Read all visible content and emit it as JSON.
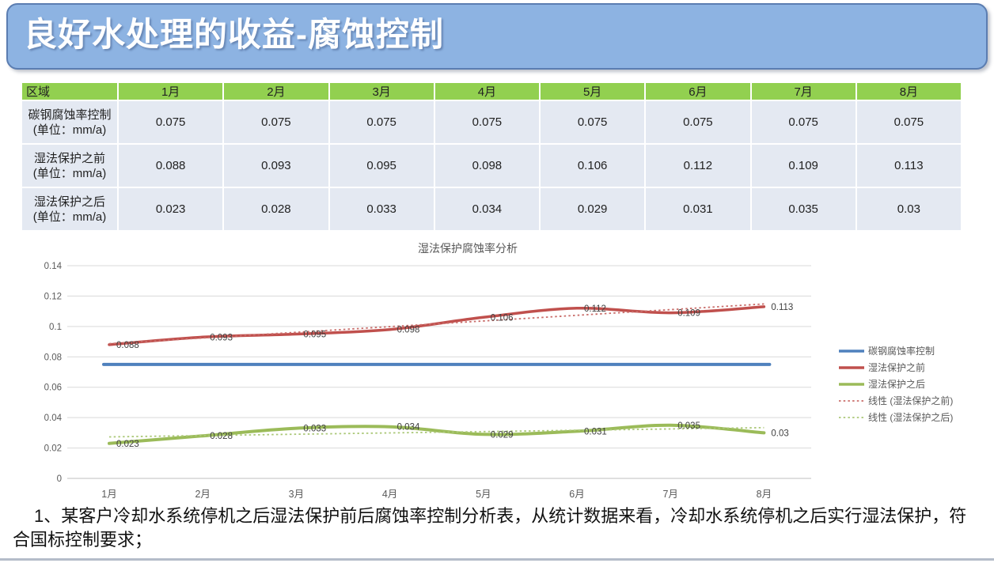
{
  "slide": {
    "title": "良好水处理的收益-腐蚀控制",
    "note": "1、某客户冷却水系统停机之后湿法保护前后腐蚀率控制分析表，从统计数据来看，冷却水系统停机之后实行湿法保护，符合国标控制要求；"
  },
  "colors": {
    "banner_fill": "#8db3e2",
    "banner_border": "#5b7db1",
    "table_header_green": "#92d050",
    "table_row_bg": "#e4e9f2",
    "bottom_rule": "#b4bcc9",
    "series_blue": "#4f81bd",
    "series_red": "#c0504d",
    "series_green": "#9bbb59"
  },
  "table": {
    "header": [
      "区域",
      "1月",
      "2月",
      "3月",
      "4月",
      "5月",
      "6月",
      "7月",
      "8月"
    ],
    "rows": [
      {
        "label": "碳钢腐蚀率控制",
        "unit": "(单位：mm/a)",
        "values": [
          "0.075",
          "0.075",
          "0.075",
          "0.075",
          "0.075",
          "0.075",
          "0.075",
          "0.075"
        ]
      },
      {
        "label": "湿法保护之前",
        "unit": "(单位：mm/a)",
        "values": [
          "0.088",
          "0.093",
          "0.095",
          "0.098",
          "0.106",
          "0.112",
          "0.109",
          "0.113"
        ]
      },
      {
        "label": "湿法保护之后",
        "unit": "(单位：mm/a)",
        "values": [
          "0.023",
          "0.028",
          "0.033",
          "0.034",
          "0.029",
          "0.031",
          "0.035",
          "0.03"
        ]
      }
    ]
  },
  "chart_data": {
    "type": "line",
    "title": "湿法保护腐蚀率分析",
    "categories": [
      "1月",
      "2月",
      "3月",
      "4月",
      "5月",
      "6月",
      "7月",
      "8月"
    ],
    "series": [
      {
        "name": "碳钢腐蚀率控制",
        "color": "#4f81bd",
        "style": "solid",
        "values": [
          0.075,
          0.075,
          0.075,
          0.075,
          0.075,
          0.075,
          0.075,
          0.075
        ],
        "data_labels": false
      },
      {
        "name": "湿法保护之前",
        "color": "#c0504d",
        "style": "solid",
        "values": [
          0.088,
          0.093,
          0.095,
          0.098,
          0.106,
          0.112,
          0.109,
          0.113
        ],
        "data_labels": true
      },
      {
        "name": "湿法保护之后",
        "color": "#9bbb59",
        "style": "solid",
        "values": [
          0.023,
          0.028,
          0.033,
          0.034,
          0.029,
          0.031,
          0.035,
          0.03
        ],
        "data_labels": true
      },
      {
        "name": "线性 (湿法保护之前)",
        "color": "#c96d6a",
        "style": "dotted",
        "trend_of": "湿法保护之前"
      },
      {
        "name": "线性 (湿法保护之后)",
        "color": "#abc878",
        "style": "dotted",
        "trend_of": "湿法保护之后"
      }
    ],
    "ylim": [
      0,
      0.14
    ],
    "ytick_step": 0.02,
    "grid": true,
    "legend_position": "right"
  }
}
